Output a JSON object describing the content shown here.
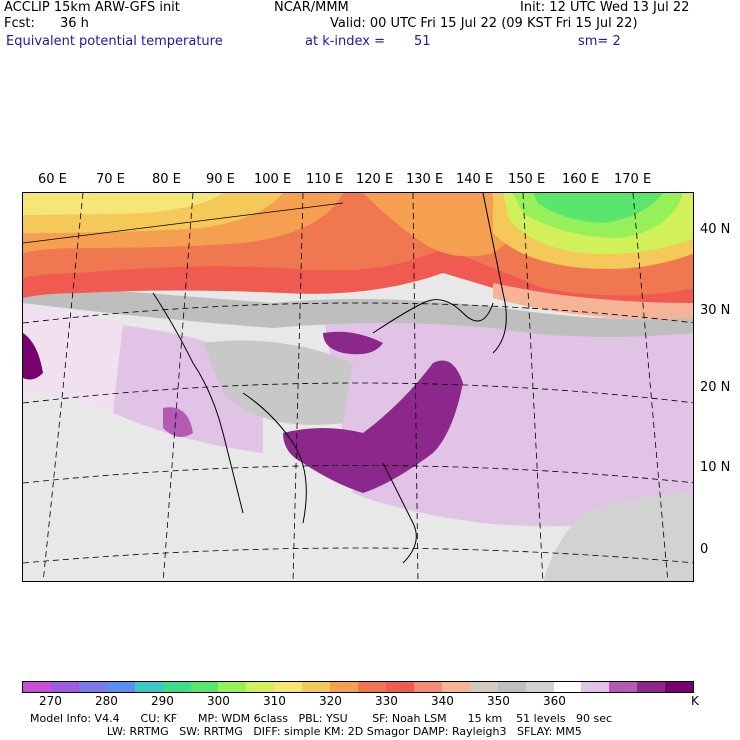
{
  "header": {
    "model": "ACCLIP 15km ARW-GFS init",
    "center": "NCAR/MMM",
    "init": "Init: 12 UTC Wed 13 Jul 22",
    "fcst_label": "Fcst:",
    "fcst_value": "36 h",
    "valid": "Valid: 00 UTC Fri 15 Jul 22 (09 KST Fri 15 Jul 22)",
    "field": "Equivalent potential temperature",
    "level": "at k-index =",
    "level_value": "51",
    "smooth": "sm= 2"
  },
  "map": {
    "lon_labels": [
      "60 E",
      "70 E",
      "80 E",
      "90 E",
      "100 E",
      "110 E",
      "120 E",
      "130 E",
      "140 E",
      "150 E",
      "160 E",
      "170 E"
    ],
    "lat_labels": [
      "40 N",
      "30 N",
      "20 N",
      "10 N",
      "0"
    ]
  },
  "colorbar": {
    "colors": [
      "#c94fd6",
      "#a05ae0",
      "#7f78e8",
      "#5a8ef0",
      "#3cc8c8",
      "#3cdc8c",
      "#5ae66e",
      "#96f05a",
      "#d2f05a",
      "#f5e678",
      "#f5c85a",
      "#f5a050",
      "#f07850",
      "#f05a50",
      "#f58c78",
      "#f5b496",
      "#d2c8c0",
      "#bebebe",
      "#d2d2d2",
      "#ffffff",
      "#e1c3e6",
      "#b45ab4",
      "#8c288c",
      "#78006e"
    ],
    "labels": [
      "270",
      "280",
      "290",
      "300",
      "310",
      "320",
      "330",
      "340",
      "350",
      "360"
    ],
    "unit": "K"
  },
  "footer": {
    "line1": "Model Info: V4.4      CU: KF      MP: WDM 6class   PBL: YSU       SF: Noah LSM      15 km    51 levels   90 sec",
    "line2": "                      LW: RRTMG   SW: RRTMG   DIFF: simple KM: 2D Smagor DAMP: Rayleigh3   SFLAY: MM5"
  }
}
